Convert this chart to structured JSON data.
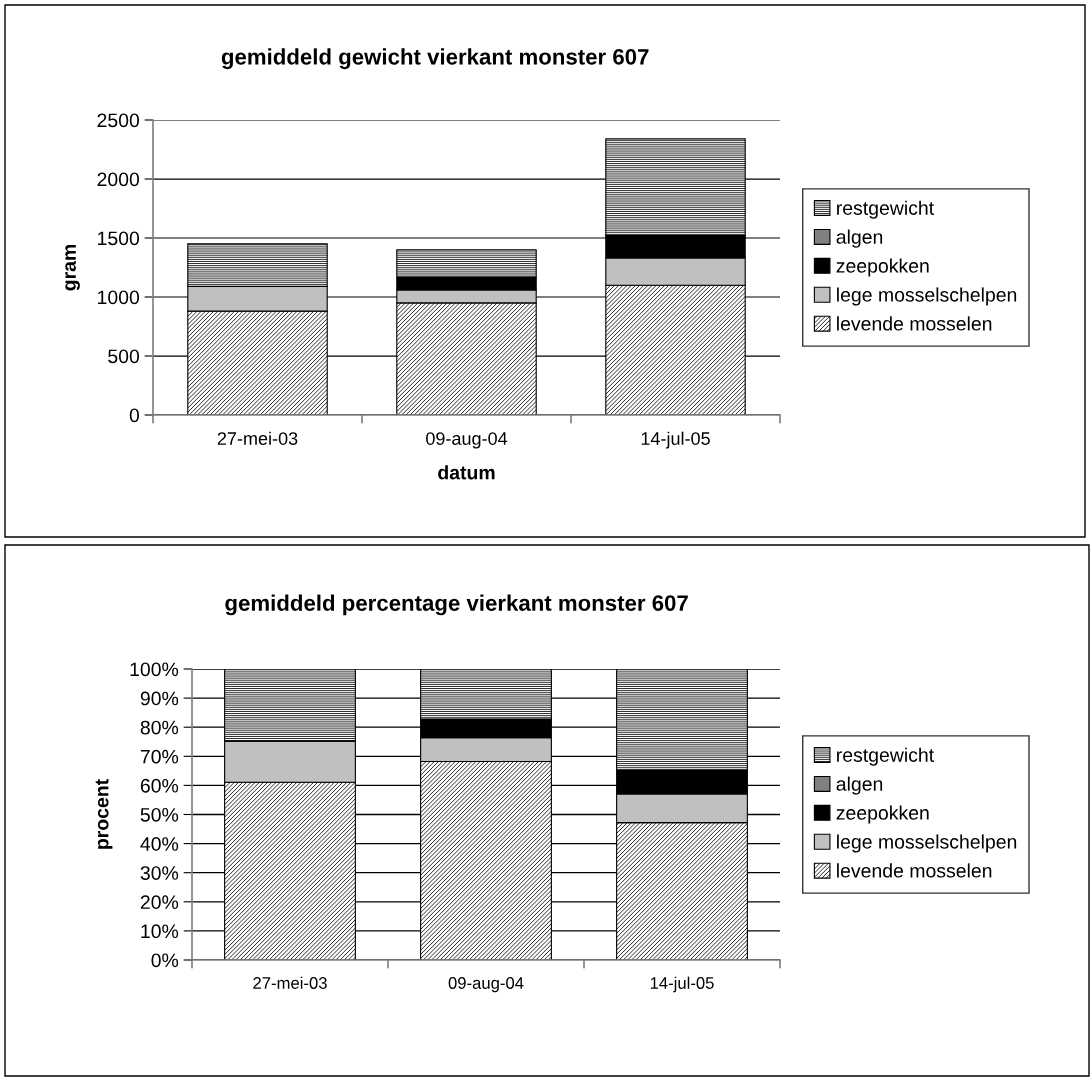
{
  "chart_data": [
    {
      "type": "bar",
      "title": "gemiddeld gewicht vierkant monster 607",
      "xlabel": "datum",
      "ylabel": "gram",
      "categories": [
        "27-mei-03",
        "09-aug-04",
        "14-jul-05"
      ],
      "stacked": true,
      "ylim": [
        0,
        2500
      ],
      "yticks": [
        0,
        500,
        1000,
        1500,
        2000,
        2500
      ],
      "grid": "y",
      "legend": "right",
      "series": [
        {
          "name": "levende mosselen",
          "color": "#000000",
          "values": [
            880,
            950,
            1100
          ]
        },
        {
          "name": "lege mosselschelpen",
          "color": "#c0c0c0",
          "values": [
            210,
            110,
            230
          ]
        },
        {
          "name": "zeepokken",
          "color": "#000000",
          "values": [
            0,
            110,
            190
          ]
        },
        {
          "name": "algen",
          "color": "#808080",
          "values": [
            0,
            0,
            0
          ]
        },
        {
          "name": "restgewicht",
          "color": "#000000",
          "values": [
            360,
            230,
            820
          ]
        }
      ]
    },
    {
      "type": "bar",
      "title": "gemiddeld percentage vierkant monster 607",
      "ylabel": "procent",
      "categories": [
        "27-mei-03",
        "09-aug-04",
        "14-jul-05"
      ],
      "stacked": true,
      "ylim": [
        0,
        100
      ],
      "yticks": [
        {
          "value": 0,
          "label": "0%"
        },
        {
          "value": 10,
          "label": "10%"
        },
        {
          "value": 20,
          "label": "20%"
        },
        {
          "value": 30,
          "label": "30%"
        },
        {
          "value": 40,
          "label": "40%"
        },
        {
          "value": 50,
          "label": "50%"
        },
        {
          "value": 60,
          "label": "60%"
        },
        {
          "value": 70,
          "label": "70%"
        },
        {
          "value": 80,
          "label": "80%"
        },
        {
          "value": 90,
          "label": "90%"
        },
        {
          "value": 100,
          "label": "100%"
        }
      ],
      "grid": "y",
      "legend": "right",
      "series": [
        {
          "name": "levende mosselen",
          "color": "#000000",
          "values": [
            61.1,
            68.2,
            47.2
          ]
        },
        {
          "name": "lege mosselschelpen",
          "color": "#c0c0c0",
          "values": [
            14.2,
            8.2,
            9.9
          ]
        },
        {
          "name": "zeepokken",
          "color": "#000000",
          "values": [
            0,
            6.4,
            8.2
          ]
        },
        {
          "name": "algen",
          "color": "#808080",
          "values": [
            0,
            0,
            0
          ]
        },
        {
          "name": "restgewicht",
          "color": "#000000",
          "values": [
            24.7,
            17.2,
            34.7
          ]
        }
      ]
    }
  ]
}
